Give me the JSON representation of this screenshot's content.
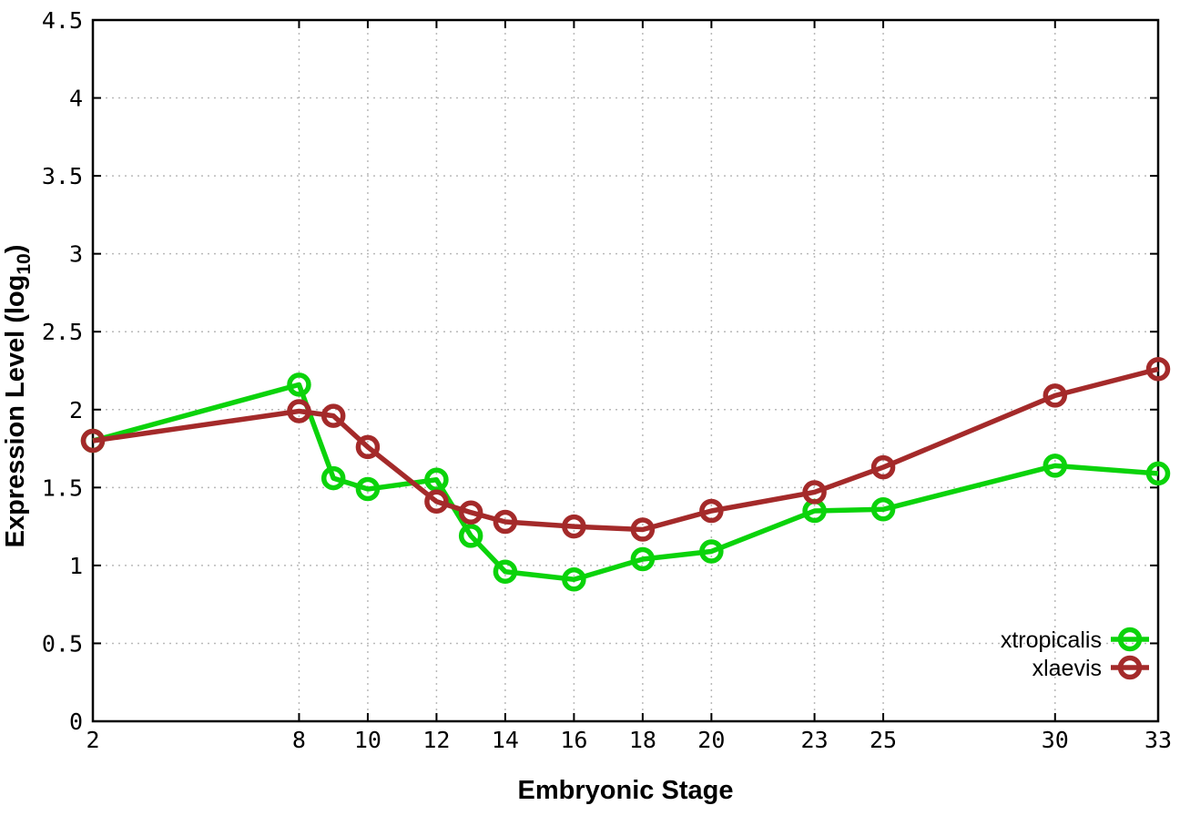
{
  "chart_data": {
    "type": "line",
    "title": "",
    "xlabel": "Embryonic Stage",
    "ylabel": "Expression Level (log10)",
    "ylabel_prefix": "Expression Level (log",
    "ylabel_sub": "10",
    "ylabel_suffix": ")",
    "x": [
      2,
      8,
      9,
      10,
      12,
      13,
      14,
      16,
      18,
      20,
      23,
      25,
      30,
      33
    ],
    "x_ticks": [
      2,
      8,
      10,
      12,
      14,
      16,
      18,
      20,
      23,
      25,
      30,
      33
    ],
    "y_ticks": [
      0,
      0.5,
      1,
      1.5,
      2,
      2.5,
      3,
      3.5,
      4,
      4.5
    ],
    "xlim": [
      2,
      33
    ],
    "ylim": [
      0,
      4.5
    ],
    "grid": true,
    "grid_color": "#b9b9b9",
    "border_color": "#000000",
    "legend_position": "inside-bottom-right",
    "marker": "open-circle",
    "series": [
      {
        "name": "xtropicalis",
        "color": "#0bd30b",
        "values": [
          1.8,
          2.16,
          1.56,
          1.49,
          1.55,
          1.19,
          0.96,
          0.91,
          1.04,
          1.09,
          1.35,
          1.36,
          1.64,
          1.59
        ]
      },
      {
        "name": "xlaevis",
        "color": "#a42a2a",
        "values": [
          1.8,
          1.99,
          1.96,
          1.76,
          1.41,
          1.34,
          1.28,
          1.25,
          1.23,
          1.35,
          1.47,
          1.63,
          2.09,
          2.26
        ]
      }
    ]
  }
}
